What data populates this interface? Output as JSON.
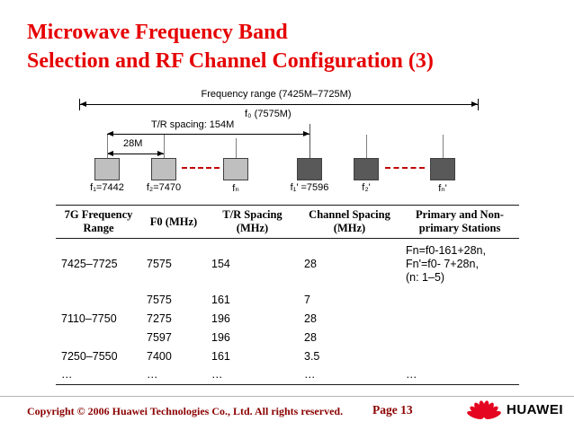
{
  "slide": {
    "title_line1": "Microwave Frequency Band",
    "title_line2": "Selection and RF Channel Configuration (3)"
  },
  "diagram": {
    "freq_range_label": "Frequency range (7425M–7725M)",
    "f0_label": "f₀ (7575M)",
    "tr_spacing_label": "T/R spacing: 154M",
    "ch_spacing_label": "28M",
    "channels": [
      {
        "label": "f₁=7442"
      },
      {
        "label": "f₂=7470"
      },
      {
        "label": "fₙ"
      },
      {
        "label": "f₁' =7596"
      },
      {
        "label": "f₂'"
      },
      {
        "label": "fₙ'"
      }
    ]
  },
  "table": {
    "headers": [
      "7G Frequency Range",
      "F0 (MHz)",
      "T/R Spacing (MHz)",
      "Channel Spacing (MHz)",
      "Primary and Non-primary Stations"
    ],
    "rows": [
      [
        "7425–7725",
        "7575",
        "154",
        "28",
        "Fn=f0-161+28n,\nFn'=f0- 7+28n,\n(n: 1–5)"
      ],
      [
        "",
        "7575",
        "161",
        "7",
        ""
      ],
      [
        "7110–7750",
        "7275",
        "196",
        "28",
        ""
      ],
      [
        "",
        "7597",
        "196",
        "28",
        ""
      ],
      [
        "7250–7550",
        "7400",
        "161",
        "3.5",
        ""
      ],
      [
        "…",
        "…",
        "…",
        "…",
        "…"
      ]
    ]
  },
  "footer": {
    "copyright": "Copyright © 2006 Huawei Technologies Co., Ltd. All rights reserved.",
    "page": "Page 13",
    "brand": "HUAWEI"
  },
  "colors": {
    "title_red": "#e60000",
    "footer_maroon": "#8b0000",
    "huawei_red": "#e40521",
    "dashed_red": "#c00000",
    "channel_light": "#bfbfbf",
    "channel_dark": "#595959"
  }
}
